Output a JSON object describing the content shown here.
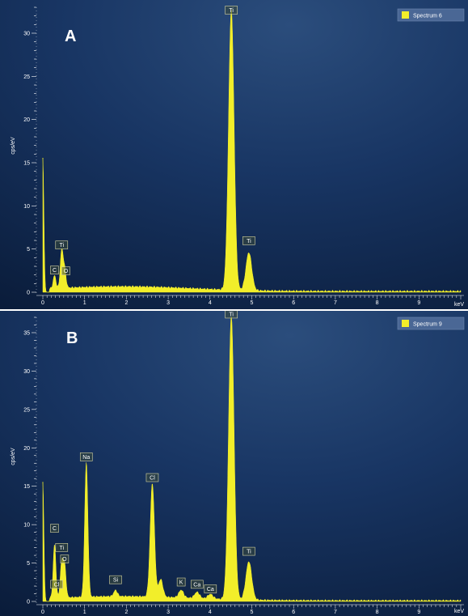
{
  "colors": {
    "spectrum": "#f2ee2a",
    "background_top": "#1d3a66",
    "background_bottom": "#0b1e3c",
    "text": "#ffffff"
  },
  "chart_data": [
    {
      "type": "line",
      "panel_label": "A",
      "legend": {
        "label": "Spectrum 6",
        "placement": "top-right"
      },
      "xlabel": "keV",
      "ylabel": "cps/eV",
      "xlim": [
        0,
        10
      ],
      "ylim": [
        0,
        33
      ],
      "x_ticks": [
        0,
        1,
        2,
        3,
        4,
        5,
        6,
        7,
        8,
        9
      ],
      "y_ticks": [
        0,
        5,
        10,
        15,
        20,
        25,
        30
      ],
      "peaks": [
        {
          "label": "",
          "x": 0.0,
          "y": 15.5
        },
        {
          "label": "C",
          "x": 0.28,
          "y": 1.5
        },
        {
          "label": "Ti",
          "x": 0.45,
          "y": 4.3
        },
        {
          "label": "O",
          "x": 0.52,
          "y": 2.2
        },
        {
          "label": "Ti",
          "x": 4.51,
          "y": 32.5
        },
        {
          "label": "Ti",
          "x": 4.93,
          "y": 4.4
        }
      ],
      "peak_labels": [
        {
          "text": "C",
          "x": 0.28,
          "y": 2.1
        },
        {
          "text": "Ti",
          "x": 0.45,
          "y": 5.0
        },
        {
          "text": "O",
          "x": 0.55,
          "y": 2.0
        },
        {
          "text": "Ti",
          "x": 4.51,
          "y": 32.2
        },
        {
          "text": "Ti",
          "x": 4.93,
          "y": 5.5
        }
      ]
    },
    {
      "type": "line",
      "panel_label": "B",
      "legend": {
        "label": "Spectrum 9",
        "placement": "top-right"
      },
      "xlabel": "keV",
      "ylabel": "cps/eV",
      "xlim": [
        0,
        10
      ],
      "ylim": [
        0,
        37
      ],
      "x_ticks": [
        0,
        1,
        2,
        3,
        4,
        5,
        6,
        7,
        8,
        9
      ],
      "y_ticks": [
        0,
        5,
        10,
        15,
        20,
        25,
        30,
        35
      ],
      "peaks": [
        {
          "label": "",
          "x": 0.0,
          "y": 15.5
        },
        {
          "label": "C",
          "x": 0.28,
          "y": 7.0
        },
        {
          "label": "Ti",
          "x": 0.45,
          "y": 4.5
        },
        {
          "label": "O",
          "x": 0.52,
          "y": 4.2
        },
        {
          "label": "Na",
          "x": 1.04,
          "y": 17.5
        },
        {
          "label": "Si",
          "x": 1.74,
          "y": 0.8
        },
        {
          "label": "Cl",
          "x": 2.62,
          "y": 14.8
        },
        {
          "label": "Cl",
          "x": 2.82,
          "y": 2.3
        },
        {
          "label": "K",
          "x": 3.31,
          "y": 1.0
        },
        {
          "label": "Ca",
          "x": 3.69,
          "y": 0.8
        },
        {
          "label": "Ca",
          "x": 4.01,
          "y": 0.6
        },
        {
          "label": "Ti",
          "x": 4.51,
          "y": 37.0
        },
        {
          "label": "Ti",
          "x": 4.93,
          "y": 5.0
        }
      ],
      "peak_labels": [
        {
          "text": "C",
          "x": 0.28,
          "y": 9.0
        },
        {
          "text": "Ti",
          "x": 0.45,
          "y": 6.5
        },
        {
          "text": "O",
          "x": 0.52,
          "y": 5.0
        },
        {
          "text": "Cl",
          "x": 0.33,
          "y": 1.7
        },
        {
          "text": "Na",
          "x": 1.04,
          "y": 18.3
        },
        {
          "text": "Si",
          "x": 1.74,
          "y": 2.3
        },
        {
          "text": "Cl",
          "x": 2.62,
          "y": 15.6
        },
        {
          "text": "K",
          "x": 3.31,
          "y": 2.0
        },
        {
          "text": "Ca",
          "x": 3.69,
          "y": 1.7
        },
        {
          "text": "Ca",
          "x": 4.01,
          "y": 1.1
        },
        {
          "text": "Ti",
          "x": 4.51,
          "y": 36.9
        },
        {
          "text": "Ti",
          "x": 4.93,
          "y": 6.0
        }
      ]
    }
  ]
}
